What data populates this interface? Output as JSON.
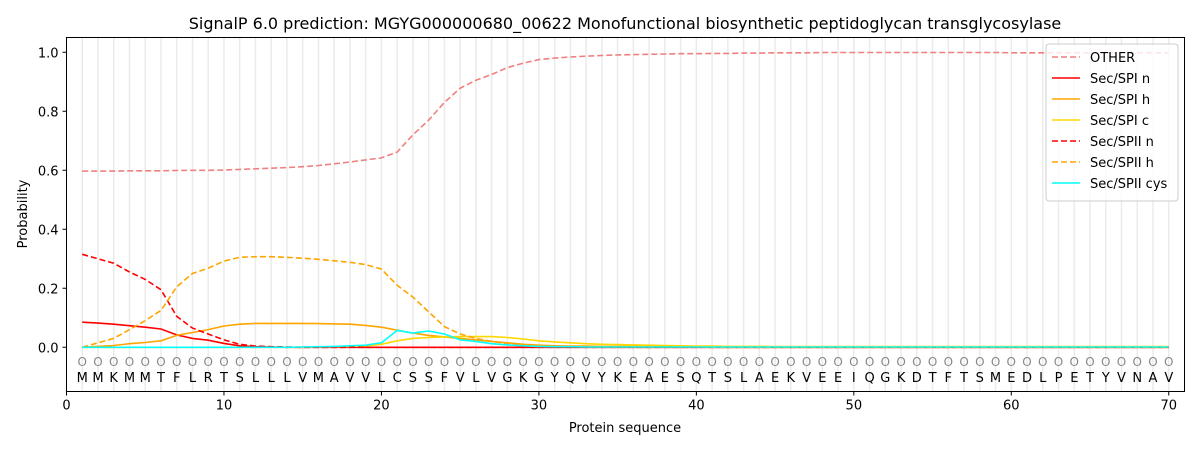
{
  "chart_data": {
    "type": "line",
    "title": "SignalP 6.0 prediction: MGYG000000680_00622 Monofunctional biosynthetic peptidoglycan transglycosylase",
    "xlabel": "Protein sequence",
    "ylabel": "Probability",
    "xlim": [
      0,
      71
    ],
    "ylim": [
      -0.15,
      1.05
    ],
    "xticks": [
      0,
      10,
      20,
      30,
      40,
      50,
      60,
      70
    ],
    "yticks": [
      "0.0",
      "0.2",
      "0.4",
      "0.6",
      "0.8",
      "1.0"
    ],
    "legend_position": "top-right",
    "sequence": "MMKMMTFLRTSLLLVMAVVLCSSFVLVGKGYQVYKEAESQTSLAEKVEEIQGKDTFTSMEDLPETYVNAV",
    "region_marker": "O",
    "series": [
      {
        "name": "OTHER",
        "color": "#f08080",
        "dash": true,
        "values": [
          0.597,
          0.597,
          0.597,
          0.598,
          0.598,
          0.598,
          0.599,
          0.6,
          0.6,
          0.601,
          0.603,
          0.605,
          0.607,
          0.609,
          0.612,
          0.616,
          0.622,
          0.628,
          0.635,
          0.642,
          0.662,
          0.72,
          0.77,
          0.83,
          0.878,
          0.905,
          0.925,
          0.948,
          0.963,
          0.975,
          0.98,
          0.984,
          0.987,
          0.989,
          0.991,
          0.992,
          0.993,
          0.994,
          0.995,
          0.995,
          0.996,
          0.996,
          0.997,
          0.997,
          0.998,
          0.998,
          0.998,
          0.999,
          0.999,
          0.999,
          0.999,
          0.999,
          0.999,
          0.999,
          0.999,
          0.999,
          0.999,
          0.999,
          0.999,
          0.998,
          0.998,
          0.998,
          0.998,
          0.998,
          0.998,
          0.998,
          0.998,
          0.998,
          0.998,
          0.998
        ]
      },
      {
        "name": "Sec/SPI n",
        "color": "#ff0000",
        "dash": false,
        "values": [
          0.085,
          0.082,
          0.078,
          0.073,
          0.068,
          0.062,
          0.042,
          0.03,
          0.024,
          0.013,
          0.005,
          0.002,
          0.001,
          0,
          0,
          0,
          0,
          0,
          0,
          0,
          0,
          0,
          0,
          0,
          0,
          0,
          0,
          0,
          0,
          0,
          0,
          0,
          0,
          0,
          0,
          0,
          0,
          0,
          0,
          0,
          0,
          0,
          0,
          0,
          0,
          0,
          0,
          0,
          0,
          0,
          0,
          0,
          0,
          0,
          0,
          0,
          0,
          0,
          0,
          0,
          0,
          0,
          0,
          0,
          0,
          0,
          0,
          0,
          0,
          0
        ]
      },
      {
        "name": "Sec/SPI h",
        "color": "#ffa500",
        "dash": false,
        "values": [
          0,
          0.003,
          0.006,
          0.012,
          0.016,
          0.022,
          0.04,
          0.05,
          0.06,
          0.072,
          0.078,
          0.081,
          0.081,
          0.081,
          0.081,
          0.08,
          0.079,
          0.078,
          0.074,
          0.068,
          0.058,
          0.048,
          0.04,
          0.035,
          0.03,
          0.025,
          0.02,
          0.015,
          0.01,
          0.007,
          0.005,
          0.004,
          0.004,
          0.003,
          0.003,
          0.003,
          0.003,
          0.003,
          0.002,
          0.002,
          0.002,
          0.002,
          0.002,
          0.002,
          0.002,
          0.002,
          0.002,
          0.002,
          0.002,
          0.002,
          0.002,
          0.002,
          0.002,
          0.002,
          0.002,
          0.002,
          0.002,
          0.002,
          0.002,
          0.002,
          0.002,
          0.002,
          0.002,
          0.002,
          0.002,
          0.002,
          0.002,
          0.002,
          0.002,
          0.002
        ]
      },
      {
        "name": "Sec/SPI c",
        "color": "#ffd700",
        "dash": false,
        "values": [
          0,
          0,
          0,
          0,
          0,
          0,
          0,
          0,
          0,
          0,
          0,
          0,
          0,
          0,
          0,
          0.001,
          0.002,
          0.003,
          0.005,
          0.01,
          0.022,
          0.03,
          0.033,
          0.035,
          0.036,
          0.036,
          0.036,
          0.033,
          0.028,
          0.022,
          0.018,
          0.015,
          0.012,
          0.01,
          0.009,
          0.008,
          0.007,
          0.006,
          0.005,
          0.004,
          0.004,
          0.003,
          0.003,
          0.003,
          0.002,
          0.002,
          0.002,
          0.002,
          0.002,
          0.002,
          0.002,
          0.002,
          0.002,
          0.002,
          0.002,
          0.002,
          0.002,
          0.002,
          0.002,
          0.002,
          0.002,
          0.002,
          0.002,
          0.002,
          0.002,
          0.002,
          0.002,
          0.002,
          0.002,
          0.002
        ]
      },
      {
        "name": "Sec/SPII n",
        "color": "#ff0000",
        "dash": true,
        "values": [
          0.315,
          0.3,
          0.285,
          0.255,
          0.23,
          0.195,
          0.105,
          0.065,
          0.045,
          0.025,
          0.01,
          0.004,
          0.002,
          0.001,
          0,
          0,
          0,
          0,
          0,
          0,
          0,
          0,
          0,
          0,
          0,
          0,
          0,
          0,
          0,
          0,
          0,
          0,
          0,
          0,
          0,
          0,
          0,
          0,
          0,
          0,
          0,
          0,
          0,
          0,
          0,
          0,
          0,
          0,
          0,
          0,
          0,
          0,
          0,
          0,
          0,
          0,
          0,
          0,
          0,
          0,
          0,
          0,
          0,
          0,
          0,
          0,
          0,
          0,
          0,
          0
        ]
      },
      {
        "name": "Sec/SPII h",
        "color": "#ffa500",
        "dash": true,
        "values": [
          0,
          0.015,
          0.03,
          0.06,
          0.09,
          0.125,
          0.205,
          0.25,
          0.268,
          0.292,
          0.305,
          0.307,
          0.307,
          0.305,
          0.302,
          0.298,
          0.293,
          0.288,
          0.28,
          0.265,
          0.21,
          0.17,
          0.12,
          0.07,
          0.045,
          0.03,
          0.02,
          0.012,
          0.008,
          0.005,
          0.003,
          0.002,
          0.002,
          0.001,
          0.001,
          0.001,
          0.001,
          0.001,
          0.001,
          0.001,
          0,
          0,
          0,
          0,
          0,
          0,
          0,
          0,
          0,
          0,
          0,
          0,
          0,
          0,
          0,
          0,
          0,
          0,
          0,
          0,
          0,
          0,
          0,
          0,
          0,
          0,
          0,
          0,
          0,
          0
        ]
      },
      {
        "name": "Sec/SPII cys",
        "color": "#00ffff",
        "dash": false,
        "values": [
          0,
          0,
          0,
          0,
          0,
          0,
          0,
          0,
          0,
          0,
          0,
          0,
          0,
          0,
          0.001,
          0.002,
          0.003,
          0.005,
          0.007,
          0.015,
          0.057,
          0.048,
          0.055,
          0.045,
          0.025,
          0.02,
          0.012,
          0.008,
          0.005,
          0.003,
          0.002,
          0.002,
          0.001,
          0.001,
          0.001,
          0.001,
          0.001,
          0.001,
          0.001,
          0.001,
          0.001,
          0.001,
          0.001,
          0.001,
          0.001,
          0.001,
          0.001,
          0.001,
          0.001,
          0.001,
          0.001,
          0.001,
          0.001,
          0.001,
          0.001,
          0.001,
          0.001,
          0.001,
          0.001,
          0.001,
          0.001,
          0.001,
          0.001,
          0.001,
          0.001,
          0.001,
          0.001,
          0.001,
          0.001,
          0.001
        ]
      }
    ]
  }
}
